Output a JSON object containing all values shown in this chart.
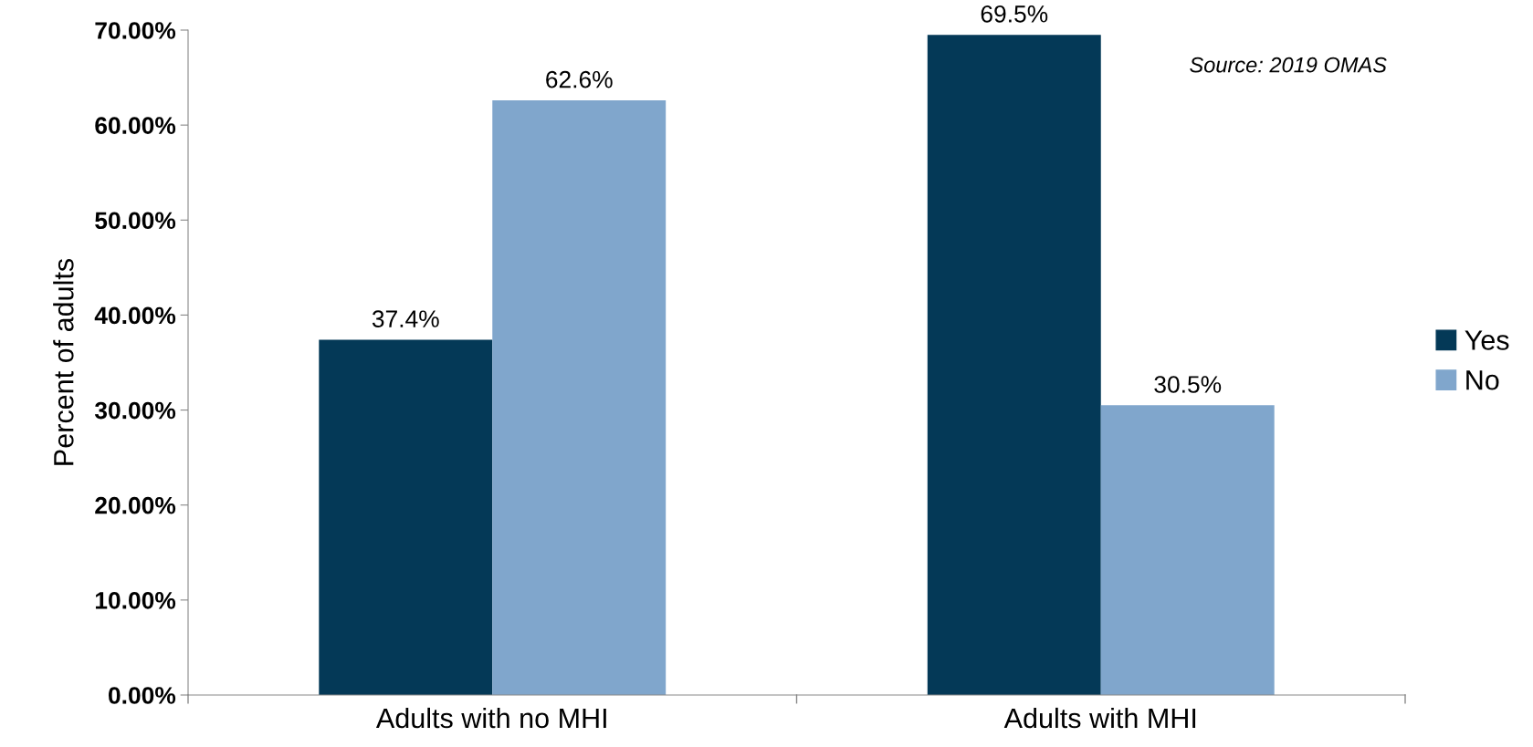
{
  "chart_data": {
    "type": "bar",
    "ylabel": "Percent of adults",
    "categories": [
      "Adults with no MHI",
      "Adults with MHI"
    ],
    "series": [
      {
        "name": "Yes",
        "color": "#043957",
        "values": [
          37.4,
          69.5
        ],
        "value_labels": [
          "37.4%",
          "69.5%"
        ]
      },
      {
        "name": "No",
        "color": "#80a6cc",
        "values": [
          62.6,
          30.5
        ],
        "value_labels": [
          "62.6%",
          "30.5%"
        ]
      }
    ],
    "ylim": [
      0,
      70
    ],
    "yticks": [
      {
        "value": 0,
        "label": "0.00%"
      },
      {
        "value": 10,
        "label": "10.00%"
      },
      {
        "value": 20,
        "label": "20.00%"
      },
      {
        "value": 30,
        "label": "30.00%"
      },
      {
        "value": 40,
        "label": "40.00%"
      },
      {
        "value": 50,
        "label": "50.00%"
      },
      {
        "value": 60,
        "label": "60.00%"
      },
      {
        "value": 70,
        "label": "70.00%"
      }
    ],
    "grid": false,
    "legend": "right",
    "annotations": [
      "Source: 2019 OMAS"
    ]
  }
}
